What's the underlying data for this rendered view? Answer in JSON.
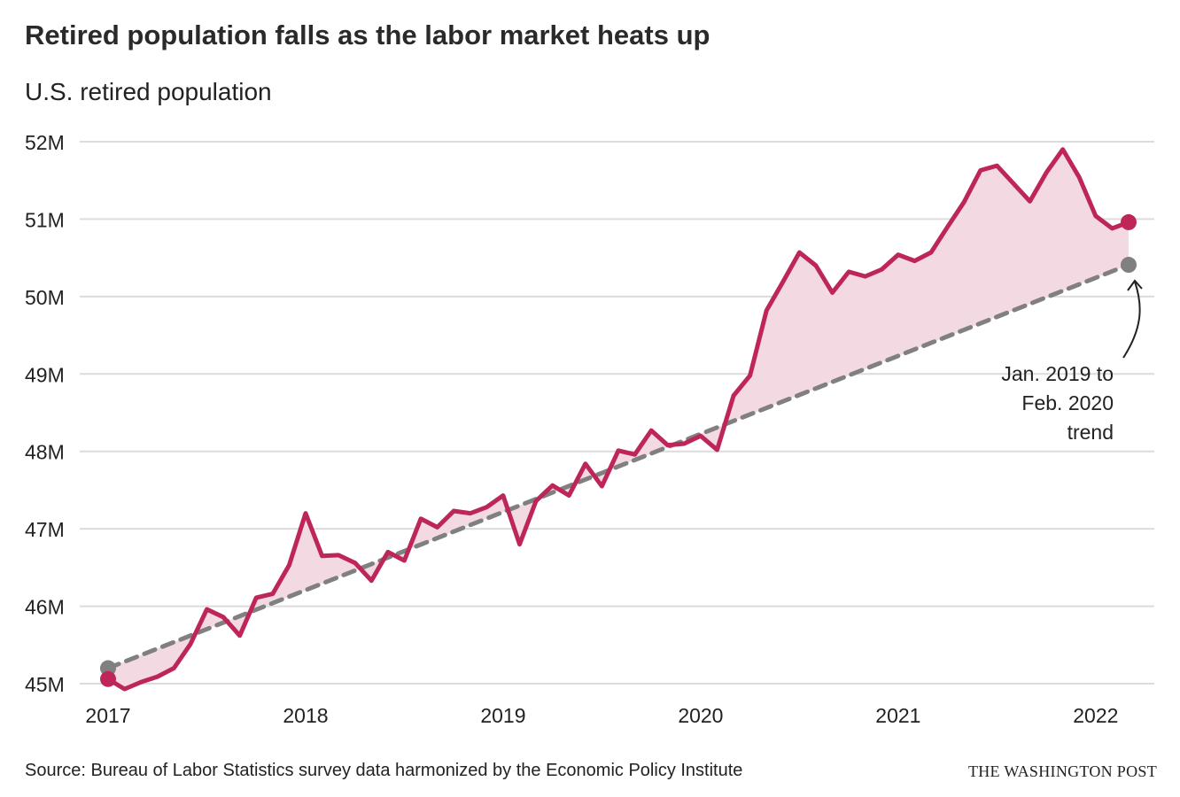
{
  "chart_data": {
    "type": "line",
    "title": "Retired population falls as the labor market heats up",
    "subtitle": "U.S. retired population",
    "ylim": [
      45,
      52
    ],
    "yticks": [
      {
        "v": 52,
        "label": "52M"
      },
      {
        "v": 51,
        "label": "51M"
      },
      {
        "v": 50,
        "label": "50M"
      },
      {
        "v": 49,
        "label": "49M"
      },
      {
        "v": 48,
        "label": "48M"
      },
      {
        "v": 47,
        "label": "47M"
      },
      {
        "v": 46,
        "label": "46M"
      },
      {
        "v": 45,
        "label": "45M"
      }
    ],
    "xticks": [
      {
        "m": 0,
        "label": "2017"
      },
      {
        "m": 12,
        "label": "2018"
      },
      {
        "m": 24,
        "label": "2019"
      },
      {
        "m": 36,
        "label": "2020"
      },
      {
        "m": 48,
        "label": "2021"
      },
      {
        "m": 60,
        "label": "2022"
      }
    ],
    "x_start": "Jan. 2017",
    "x_unit": "month",
    "series": [
      {
        "name": "Retired population (millions)",
        "color": "#bd2657",
        "values": [
          45.06,
          44.93,
          45.02,
          45.09,
          45.2,
          45.51,
          45.96,
          45.86,
          45.62,
          46.11,
          46.16,
          46.53,
          47.2,
          46.65,
          46.66,
          46.56,
          46.33,
          46.7,
          46.59,
          47.13,
          47.02,
          47.23,
          47.2,
          47.28,
          47.43,
          46.8,
          47.36,
          47.56,
          47.43,
          47.84,
          47.55,
          48.01,
          47.96,
          48.27,
          48.08,
          48.1,
          48.2,
          48.02,
          48.72,
          48.98,
          49.82,
          50.19,
          50.57,
          50.4,
          50.05,
          50.32,
          50.26,
          50.35,
          50.54,
          50.46,
          50.57,
          50.9,
          51.22,
          51.63,
          51.69,
          51.46,
          51.23,
          51.6,
          51.9,
          51.54,
          51.04,
          50.88,
          50.96
        ]
      },
      {
        "name": "Jan. 2019 to Feb. 2020 trend",
        "color": "#808080",
        "start": 45.2,
        "end": 50.41
      }
    ],
    "annotation": [
      "Jan. 2019 to",
      "Feb. 2020",
      "trend"
    ],
    "fill_color": "#f3dae2",
    "grid": true
  },
  "source": "Source: Bureau of Labor Statistics survey data harmonized by the Economic Policy Institute",
  "credit": "THE WASHINGTON POST"
}
